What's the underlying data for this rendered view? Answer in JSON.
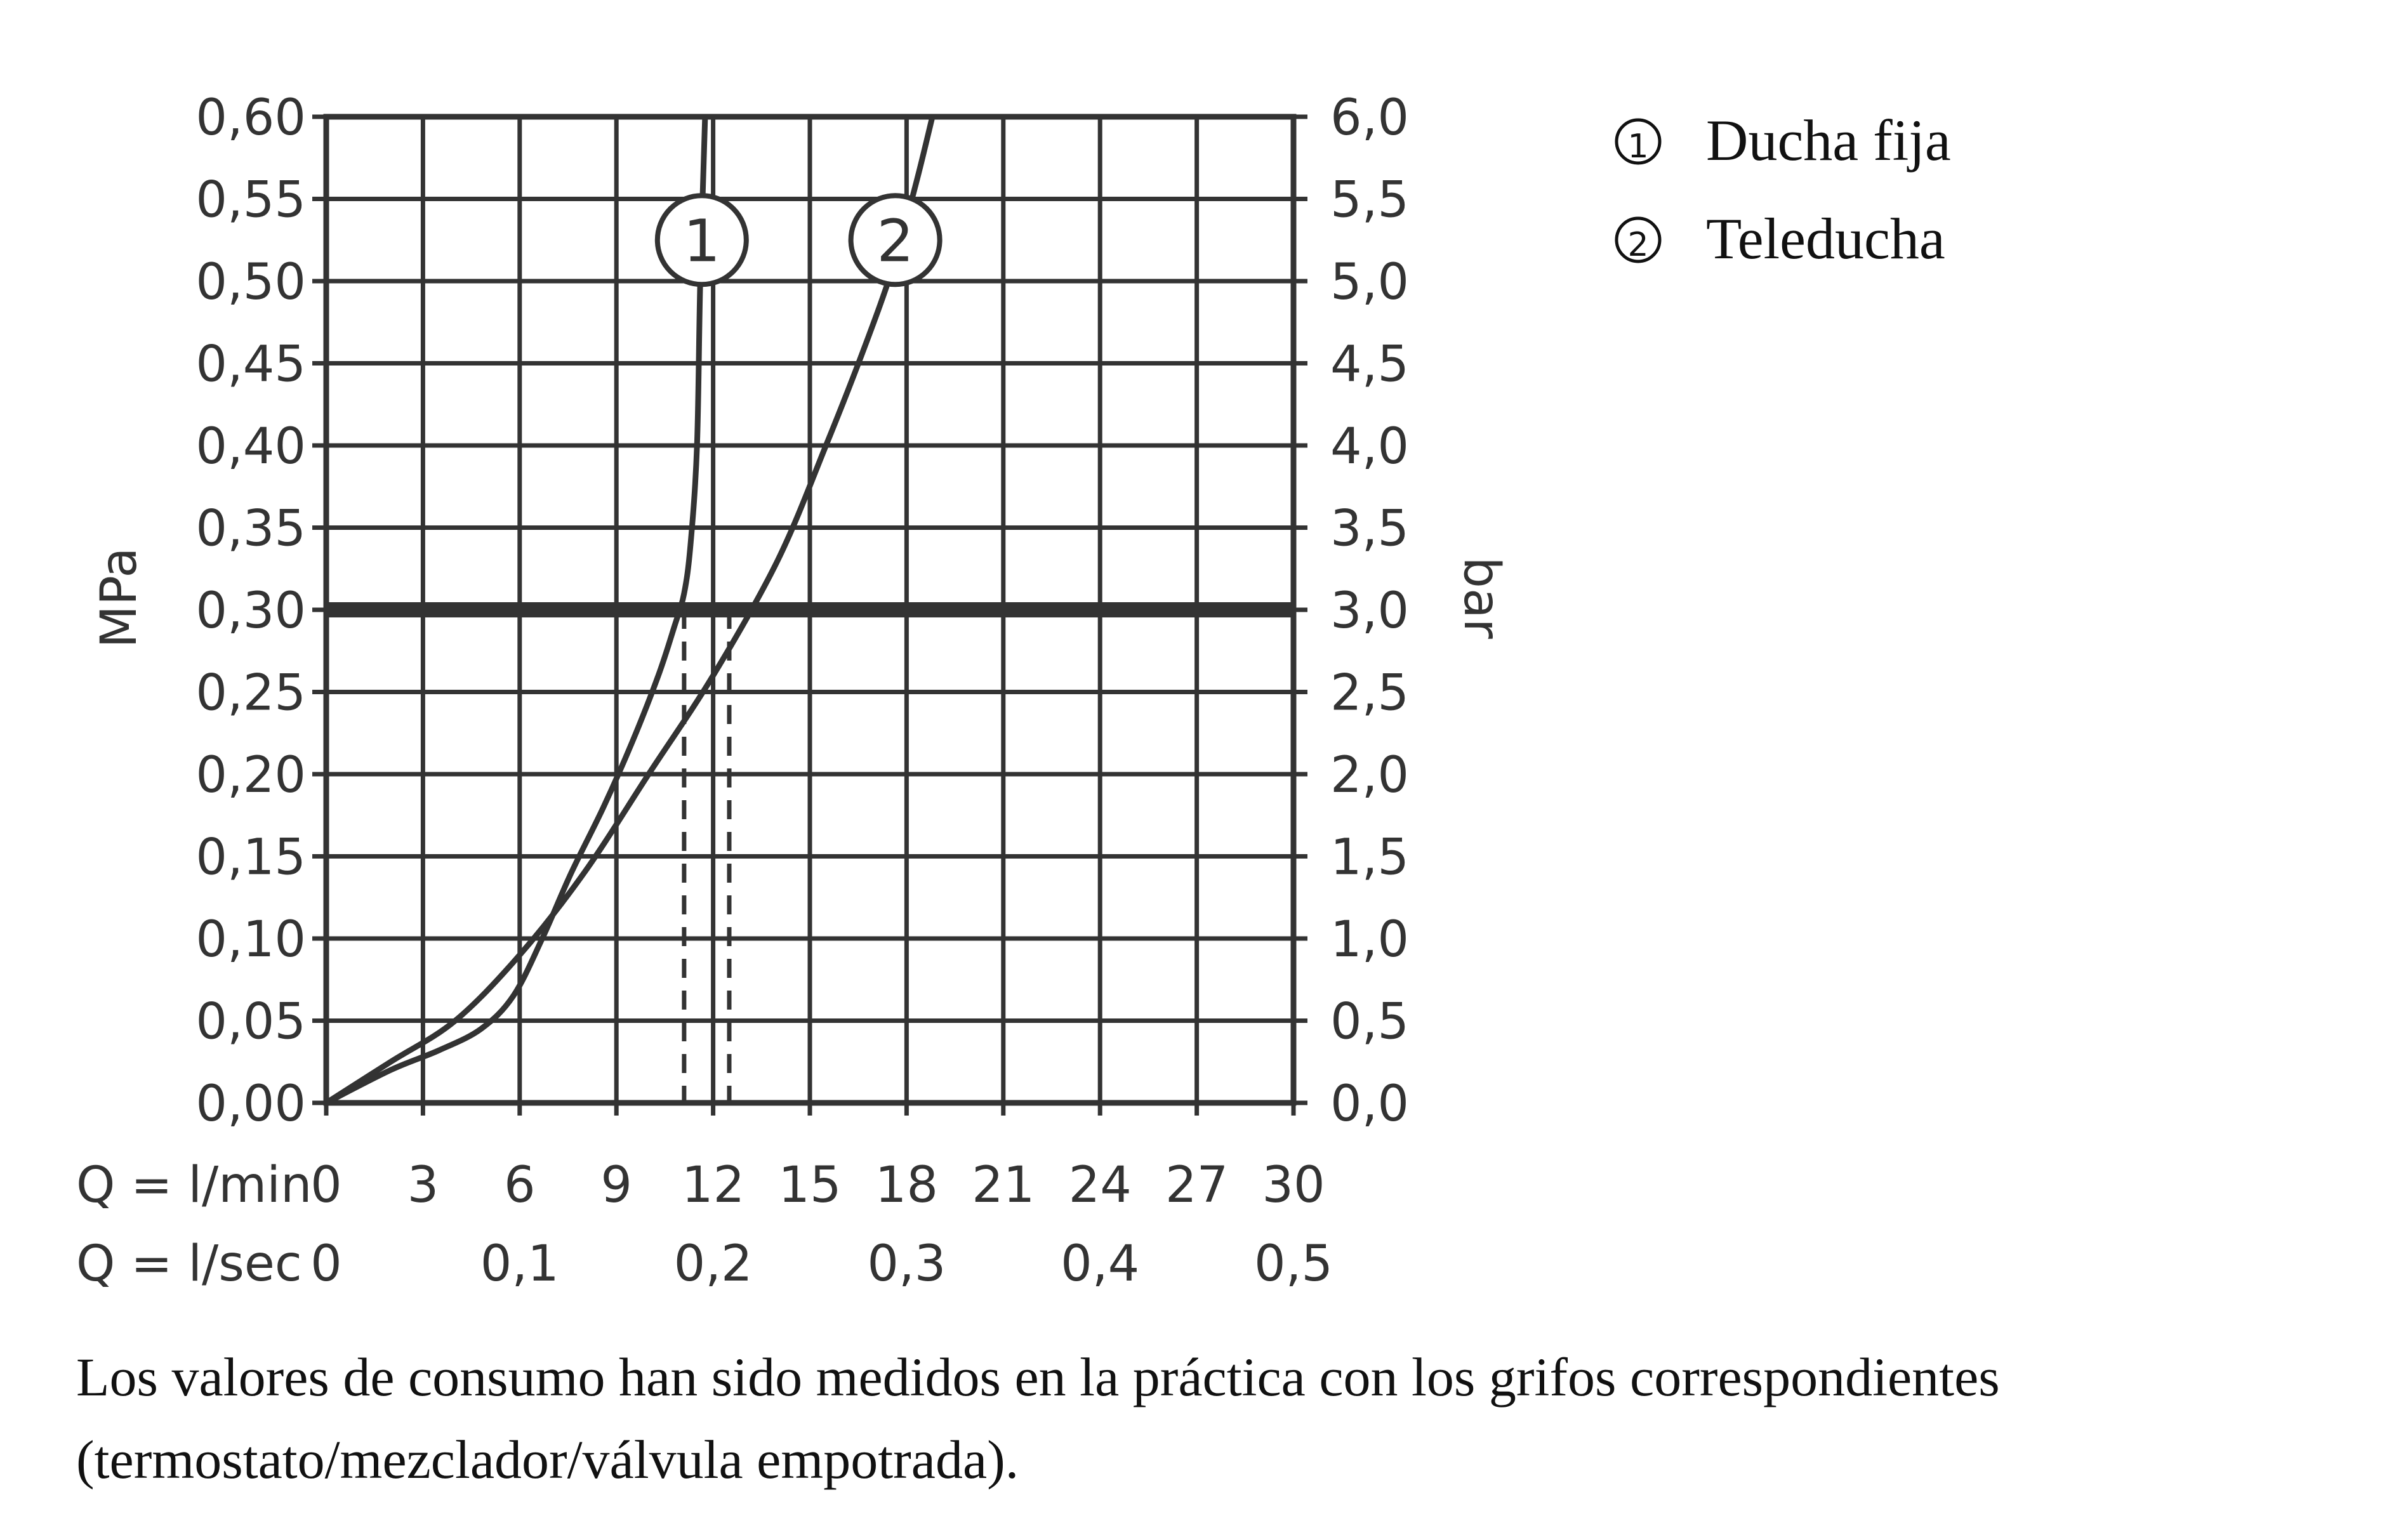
{
  "chart_data": {
    "type": "line",
    "x_unit_primary": "Q = l/min",
    "x_unit_secondary": "Q = l/sec",
    "x_ticks_primary": [
      0,
      3,
      6,
      9,
      12,
      15,
      18,
      21,
      24,
      27,
      30
    ],
    "x_tick_labels_primary": [
      "0",
      "3",
      "6",
      "9",
      "12",
      "15",
      "18",
      "21",
      "24",
      "27",
      "30"
    ],
    "x_ticks_secondary": [
      0,
      6,
      12,
      18,
      24,
      30
    ],
    "x_tick_labels_secondary": [
      "0",
      "0,1",
      "0,2",
      "0,3",
      "0,4",
      "0,5"
    ],
    "xlim": [
      0,
      30
    ],
    "ylabel_left": "MPa",
    "ylabel_right": "bar",
    "ylim": [
      0,
      0.6
    ],
    "y_ticks": [
      0,
      0.05,
      0.1,
      0.15,
      0.2,
      0.25,
      0.3,
      0.35,
      0.4,
      0.45,
      0.5,
      0.55,
      0.6
    ],
    "y_tick_labels_left": [
      "0,00",
      "0,05",
      "0,10",
      "0,15",
      "0,20",
      "0,25",
      "0,30",
      "0,35",
      "0,40",
      "0,45",
      "0,50",
      "0,55",
      "0,60"
    ],
    "y_tick_labels_right": [
      "0,0",
      "0,5",
      "1,0",
      "1,5",
      "2,0",
      "2,5",
      "3,0",
      "3,5",
      "4,0",
      "4,5",
      "5,0",
      "5,5",
      "6,0"
    ],
    "grid": true,
    "reference_line_y": 0.3,
    "series": [
      {
        "marker_label": "1",
        "x": [
          0,
          2,
          3.5,
          4.8,
          5.8,
          6.7,
          7.6,
          8.6,
          9.5,
          10.3,
          10.8,
          11.1,
          11.3,
          11.5,
          11.6,
          11.75
        ],
        "y": [
          0,
          0.02,
          0.032,
          0.045,
          0.065,
          0.1,
          0.14,
          0.18,
          0.22,
          0.26,
          0.29,
          0.31,
          0.34,
          0.4,
          0.5,
          0.6
        ],
        "dashed_drop_x": 11.1
      },
      {
        "marker_label": "2",
        "x": [
          0,
          2,
          4,
          6,
          8,
          10,
          12,
          14,
          15.5,
          16.7,
          17.6,
          18.3,
          18.8
        ],
        "y": [
          0,
          0.025,
          0.05,
          0.09,
          0.14,
          0.2,
          0.26,
          0.33,
          0.4,
          0.46,
          0.51,
          0.56,
          0.6
        ],
        "dashed_drop_x": 12.5
      }
    ],
    "series_marker_positions": [
      {
        "label": "1",
        "x": 11.65,
        "y": 0.525
      },
      {
        "label": "2",
        "x": 17.65,
        "y": 0.525
      }
    ]
  },
  "legend": [
    {
      "marker": "①",
      "text": "Ducha fija"
    },
    {
      "marker": "②",
      "text": "Teleducha"
    }
  ],
  "footnote": {
    "line1": "Los valores de consumo han sido medidos en la práctica con los grifos correspondientes",
    "line2": "(termostato/mezclador/válvula empotrada)."
  },
  "colors": {
    "axis": "#333333",
    "grid": "#333333",
    "curve": "#333333",
    "reference_line": "#333333",
    "text": "#111111"
  }
}
